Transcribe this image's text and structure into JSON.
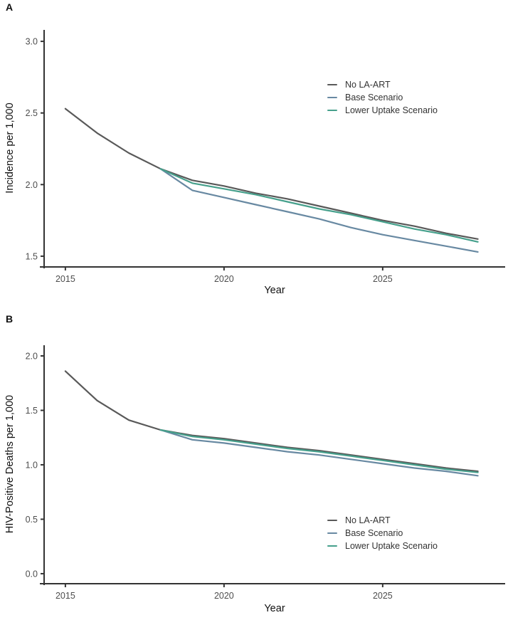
{
  "figure": {
    "panels": [
      {
        "label": "A"
      },
      {
        "label": "B"
      }
    ]
  },
  "colors": {
    "axis": "#333333",
    "tick_label": "#4d4d4d",
    "text": "#111111",
    "no_la_art": "#595959",
    "base_scenario": "#6889a2",
    "lower_uptake_scenario": "#46a08c"
  },
  "chart_data": [
    {
      "type": "line",
      "panel": "A",
      "title": "",
      "xlabel": "Year",
      "ylabel": "Incidence per 1,000",
      "grid": false,
      "legend_position": "top-right",
      "x": [
        2015,
        2016,
        2017,
        2018,
        2019,
        2020,
        2021,
        2022,
        2023,
        2024,
        2025,
        2026,
        2027,
        2028
      ],
      "series": [
        {
          "name": "No LA-ART",
          "color": "#595959",
          "values": [
            2.53,
            2.36,
            2.22,
            2.11,
            2.03,
            1.99,
            1.94,
            1.9,
            1.85,
            1.8,
            1.75,
            1.71,
            1.66,
            1.62
          ]
        },
        {
          "name": "Base Scenario",
          "color": "#6889a2",
          "values": [
            null,
            null,
            null,
            2.11,
            1.96,
            1.91,
            1.86,
            1.81,
            1.76,
            1.7,
            1.65,
            1.61,
            1.57,
            1.53
          ]
        },
        {
          "name": "Lower Uptake Scenario",
          "color": "#46a08c",
          "values": [
            null,
            null,
            null,
            2.11,
            2.01,
            1.97,
            1.93,
            1.88,
            1.83,
            1.79,
            1.74,
            1.69,
            1.65,
            1.6
          ]
        }
      ],
      "xticks": {
        "values": [
          2015,
          2020,
          2025
        ],
        "labels": [
          "2015",
          "2020",
          "2025"
        ]
      },
      "yticks": {
        "values": [
          1.5,
          2.0,
          2.5,
          3.0
        ],
        "labels": [
          "1.5",
          "2.0",
          "2.5",
          "3.0"
        ]
      },
      "xlim": [
        2014.33,
        2028.86
      ],
      "ylim": [
        1.425,
        3.08
      ]
    },
    {
      "type": "line",
      "panel": "B",
      "title": "",
      "xlabel": "Year",
      "ylabel": "HIV-Positive Deaths per 1,000",
      "grid": false,
      "legend_position": "bottom-right",
      "x": [
        2015,
        2016,
        2017,
        2018,
        2019,
        2020,
        2021,
        2022,
        2023,
        2024,
        2025,
        2026,
        2027,
        2028
      ],
      "series": [
        {
          "name": "No LA-ART",
          "color": "#595959",
          "values": [
            1.86,
            1.59,
            1.41,
            1.32,
            1.27,
            1.24,
            1.2,
            1.16,
            1.13,
            1.09,
            1.05,
            1.01,
            0.97,
            0.94
          ]
        },
        {
          "name": "Base Scenario",
          "color": "#6889a2",
          "values": [
            null,
            null,
            null,
            1.32,
            1.23,
            1.2,
            1.16,
            1.12,
            1.09,
            1.05,
            1.01,
            0.97,
            0.94,
            0.9
          ]
        },
        {
          "name": "Lower Uptake Scenario",
          "color": "#46a08c",
          "values": [
            null,
            null,
            null,
            1.32,
            1.26,
            1.23,
            1.19,
            1.15,
            1.12,
            1.08,
            1.04,
            1.0,
            0.96,
            0.93
          ]
        }
      ],
      "xticks": {
        "values": [
          2015,
          2020,
          2025
        ],
        "labels": [
          "2015",
          "2020",
          "2025"
        ]
      },
      "yticks": {
        "values": [
          0.0,
          0.5,
          1.0,
          1.5,
          2.0
        ],
        "labels": [
          "0.0",
          "0.5",
          "1.0",
          "1.5",
          "2.0"
        ]
      },
      "xlim": [
        2014.33,
        2028.86
      ],
      "ylim": [
        -0.092,
        2.098
      ]
    }
  ]
}
